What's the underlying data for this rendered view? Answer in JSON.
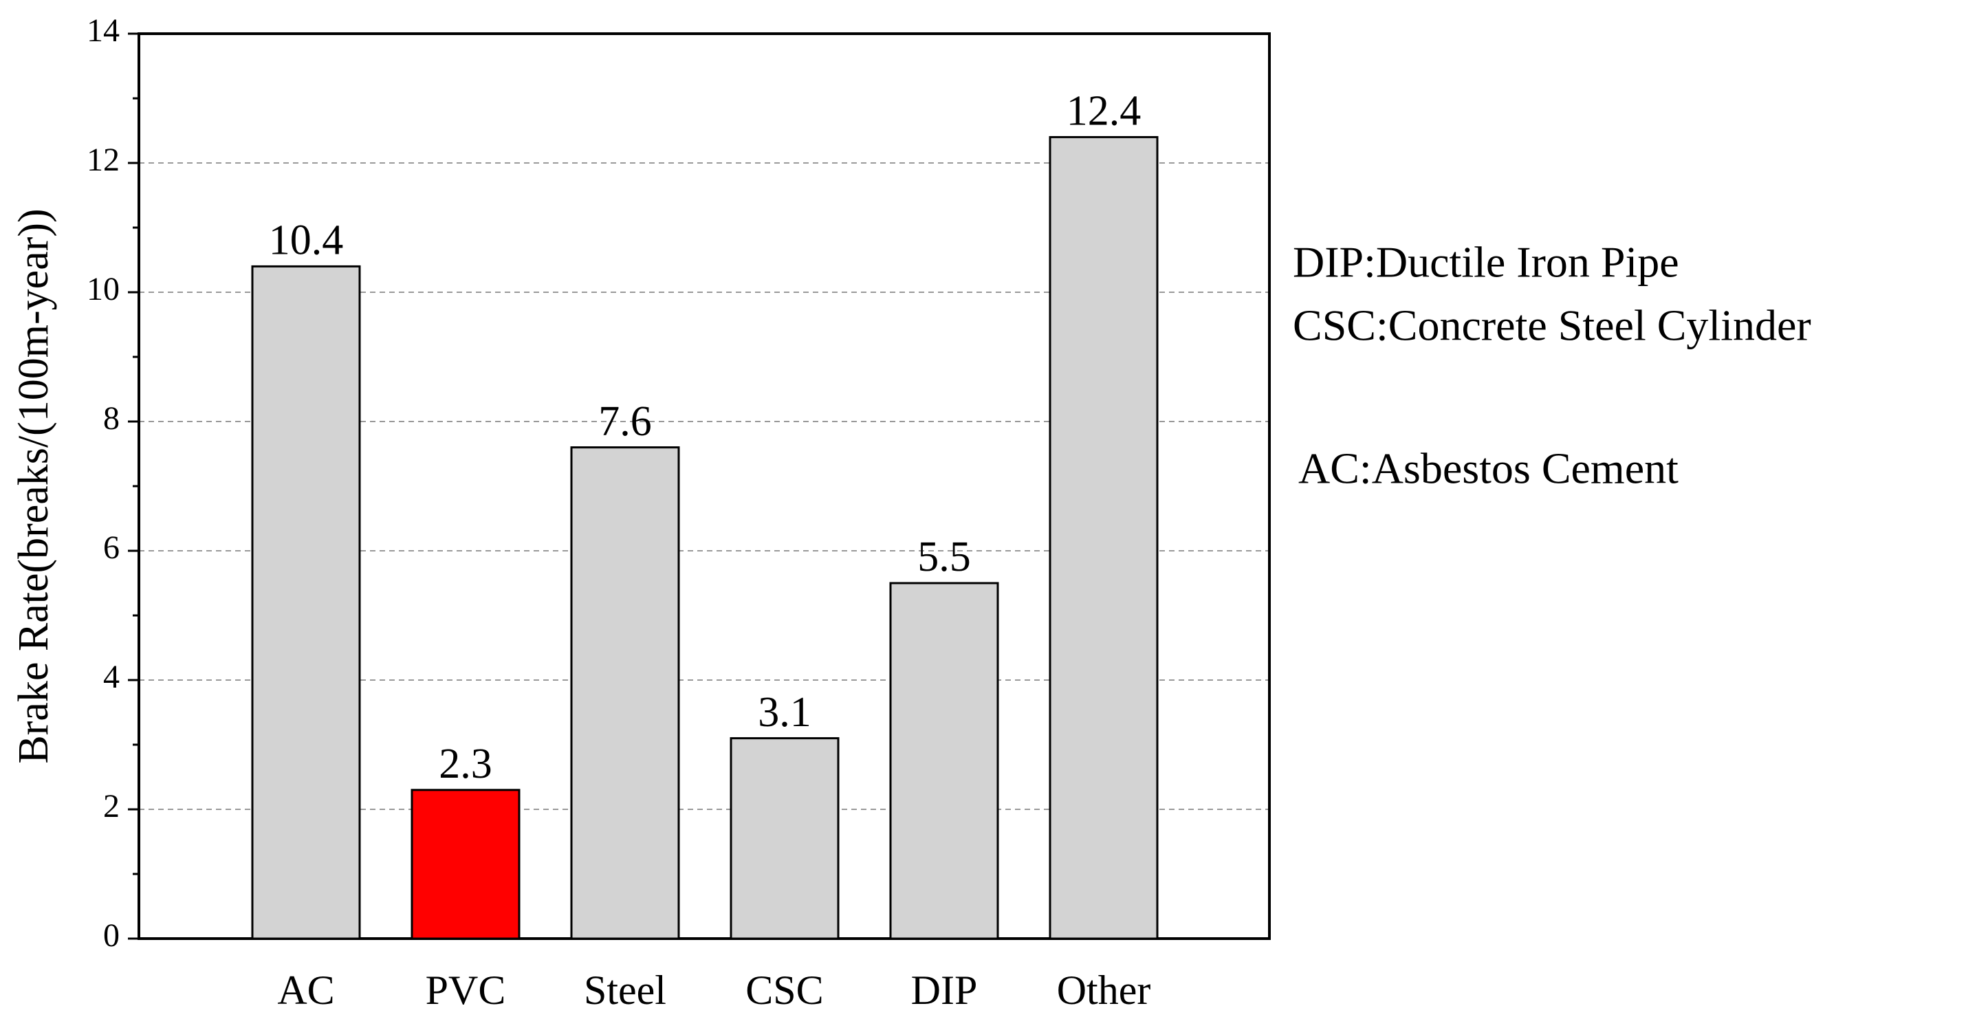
{
  "chart_data": {
    "type": "bar",
    "ylabel": "Brake Rate(breaks/(100m-year))",
    "categories": [
      "AC",
      "PVC",
      "Steel",
      "CSC",
      "DIP",
      "Other"
    ],
    "values": [
      10.4,
      2.3,
      7.6,
      3.1,
      5.5,
      12.4
    ],
    "colors": [
      "#d3d3d3",
      "#ff0000",
      "#d3d3d3",
      "#d3d3d3",
      "#d3d3d3",
      "#d3d3d3"
    ],
    "ylim": [
      0,
      14
    ],
    "yticks": [
      0,
      2,
      4,
      6,
      8,
      10,
      12,
      14
    ],
    "grid": true,
    "annotations": [
      "DIP:Ductile Iron Pipe",
      "CSC:Concrete Steel Cylinder",
      "AC:Asbestos Cement"
    ]
  }
}
